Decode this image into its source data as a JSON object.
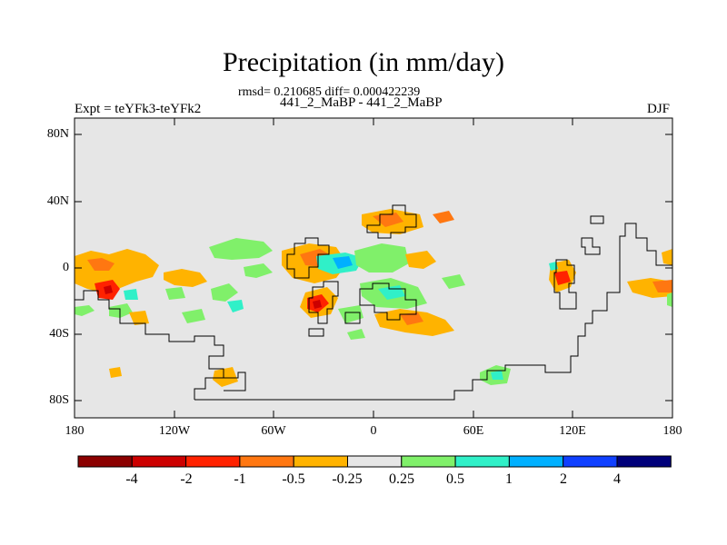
{
  "map": {
    "title": "Precipitation (in mm/day)",
    "stats": "rmsd= 0.210685 diff= 0.000422239",
    "subtitle": "441_2_MaBP - 441_2_MaBP",
    "left_label": "Expt = teYFk3-teYFk2",
    "right_label": "DJF",
    "lat_ticks": [
      "80N",
      "40N",
      "0",
      "40S",
      "80S"
    ],
    "lon_ticks": [
      "180",
      "120W",
      "60W",
      "0",
      "60E",
      "120E",
      "180"
    ]
  },
  "colorbar": {
    "labels": [
      "-4",
      "-2",
      "-1",
      "-0.5",
      "-0.25",
      "0.25",
      "0.5",
      "1",
      "2",
      "4"
    ],
    "colors": [
      "#8b0000",
      "#cc0000",
      "#ff2200",
      "#ff7711",
      "#ffb300",
      "#e6e6e6",
      "#80f06a",
      "#30f0c8",
      "#00b0ff",
      "#1040ff",
      "#00007a"
    ]
  },
  "colors": {
    "background": "#e6e6e6",
    "orange": "#ffb300",
    "dark_orange": "#ff7711",
    "red": "#ff2200",
    "green": "#80f06a",
    "cyan": "#30f0c8",
    "blue": "#00b0ff"
  }
}
